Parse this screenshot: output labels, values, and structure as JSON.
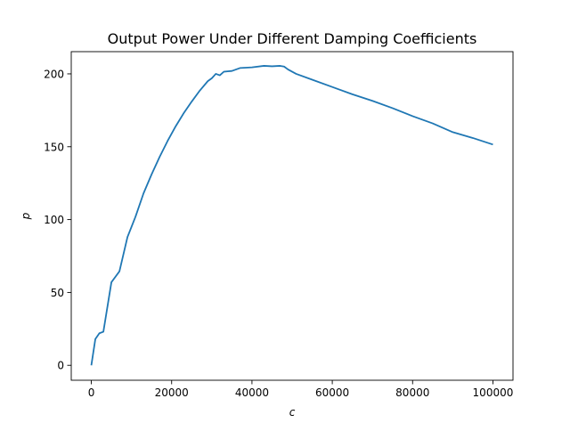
{
  "chart_data": {
    "type": "line",
    "title": "Output Power Under Different Damping Coefficients",
    "xlabel": "c",
    "ylabel": "p",
    "xlim": [
      -5000,
      105000
    ],
    "ylim": [
      -10.25,
      215.25
    ],
    "xticks": [
      0,
      20000,
      40000,
      60000,
      80000,
      100000
    ],
    "xtick_labels": [
      "0",
      "20000",
      "40000",
      "60000",
      "80000",
      "100000"
    ],
    "yticks": [
      0,
      50,
      100,
      150,
      200
    ],
    "ytick_labels": [
      "0",
      "50",
      "100",
      "150",
      "200"
    ],
    "grid": false,
    "legend": "none",
    "series": [
      {
        "color": "#1f77b4",
        "x": [
          0,
          1000,
          2000,
          3000,
          5000,
          7000,
          9000,
          11000,
          13000,
          15000,
          17000,
          19000,
          21000,
          23000,
          25000,
          27000,
          29000,
          30000,
          31000,
          32000,
          33000,
          35000,
          37000,
          40000,
          43000,
          45000,
          47000,
          48000,
          49000,
          51000,
          55000,
          60000,
          65000,
          70000,
          75000,
          80000,
          85000,
          90000,
          95000,
          100000
        ],
        "y": [
          0,
          18,
          22,
          23,
          57,
          64.5,
          88,
          102,
          118,
          131,
          143,
          154,
          164,
          173,
          181,
          188.5,
          195,
          197,
          200,
          199,
          201.5,
          202,
          204,
          204.5,
          205.5,
          205.2,
          205.5,
          205,
          203,
          200,
          196,
          191,
          186,
          181.5,
          176.5,
          171,
          166,
          160,
          156,
          151.5
        ]
      }
    ]
  }
}
